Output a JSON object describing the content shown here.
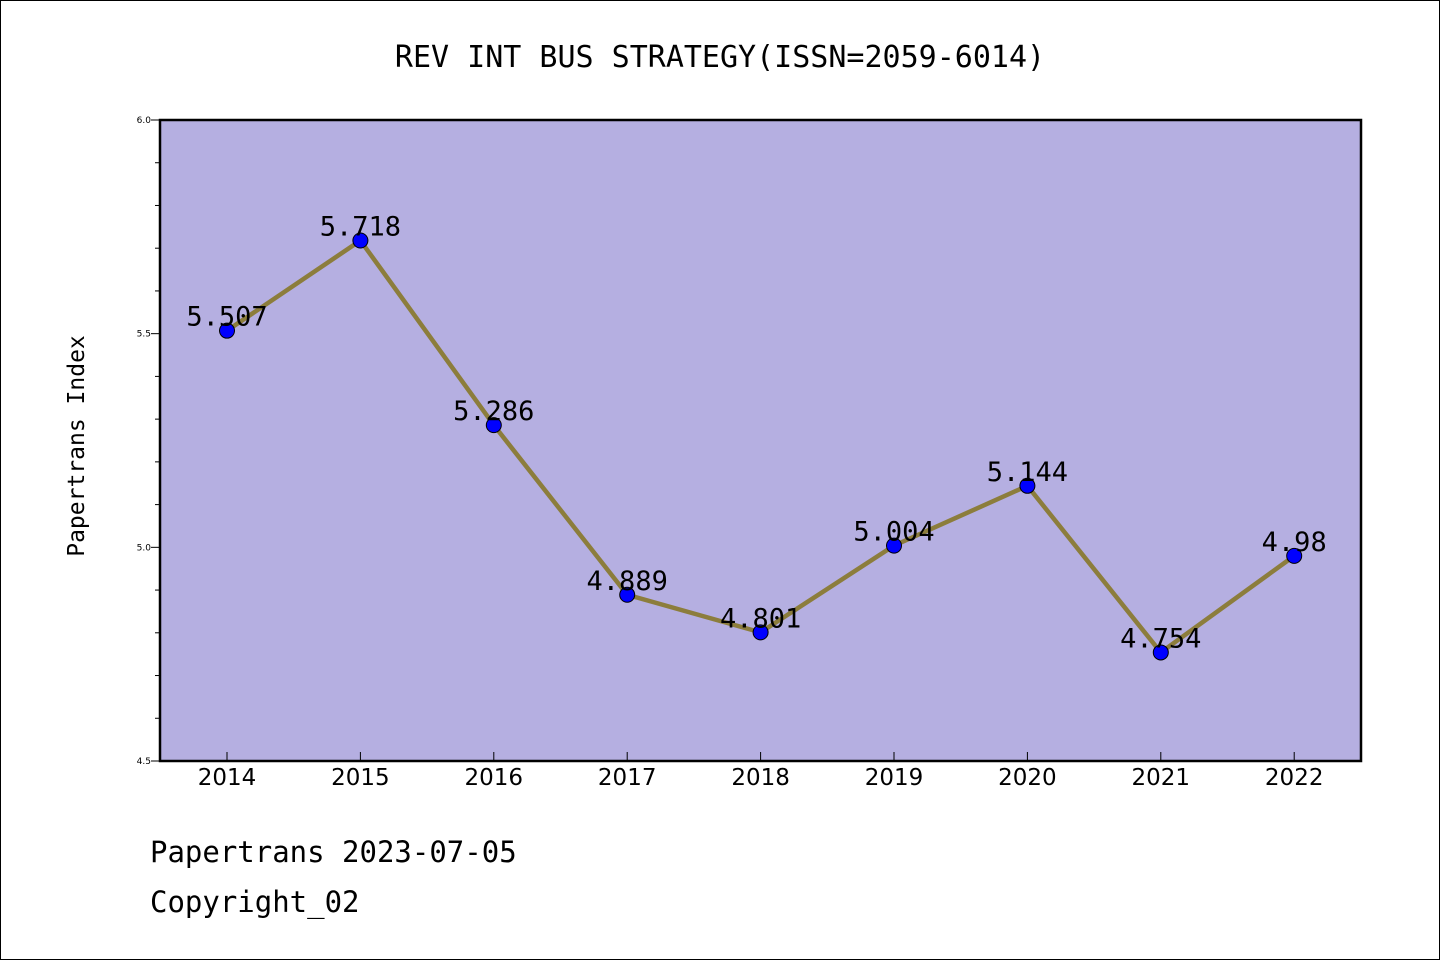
{
  "chart_data": {
    "type": "line",
    "title": "REV INT BUS STRATEGY(ISSN=2059-6014)",
    "xlabel": "",
    "ylabel": "Papertrans Index",
    "categories": [
      "2014",
      "2015",
      "2016",
      "2017",
      "2018",
      "2019",
      "2020",
      "2021",
      "2022"
    ],
    "series": [
      {
        "values": [
          5.507,
          5.718,
          5.286,
          4.889,
          4.801,
          5.004,
          5.144,
          4.754,
          4.98
        ],
        "labels": [
          "5.507",
          "5.718",
          "5.286",
          "4.889",
          "4.801",
          "5.004",
          "5.144",
          "4.754",
          "4.98"
        ]
      }
    ],
    "ylim": [
      4.5,
      6.0
    ],
    "y_ticks": [
      "4.5",
      "5.0",
      "5.5",
      "6.0"
    ],
    "grid": false,
    "colors": {
      "plot_background": "#b5afe1",
      "line": "#8c7d3c",
      "marker": "#0000ff"
    }
  },
  "footer": {
    "date": "Papertrans 2023-07-05",
    "copyright": "Copyright_02"
  }
}
